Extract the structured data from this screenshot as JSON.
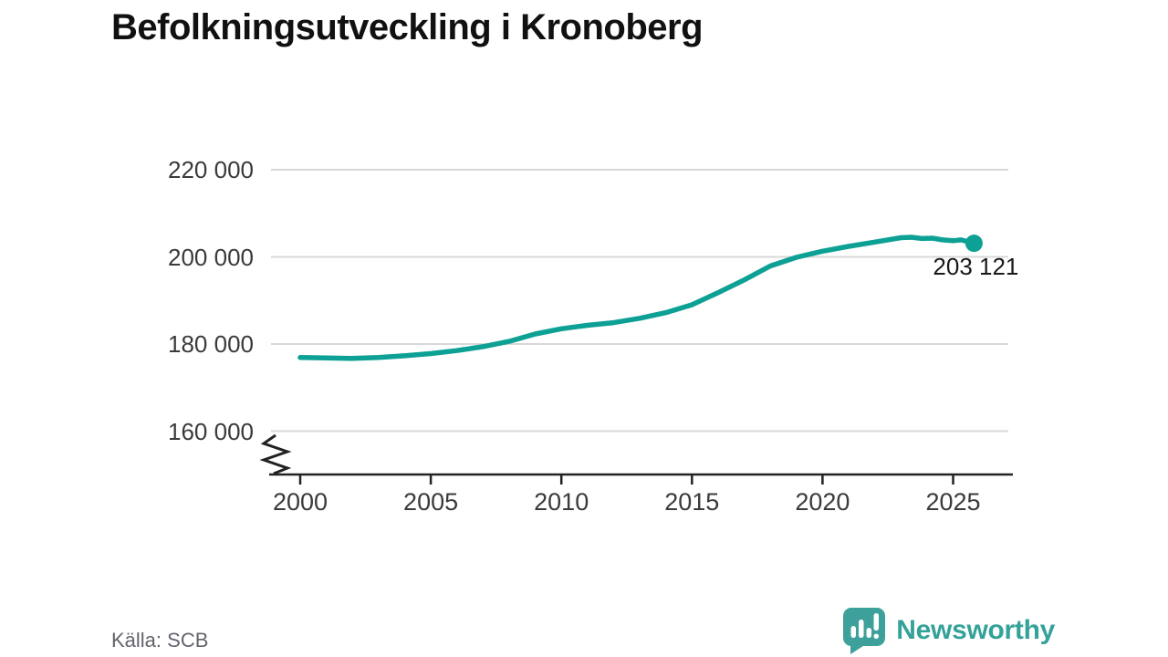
{
  "title": "Befolkningsutveckling i Kronoberg",
  "source": "Källa: SCB",
  "branding": {
    "logo_text": "Newsworthy",
    "logo_icon": "newsworthy-bar-chart-speech-bubble",
    "logo_color": "#3ea09a"
  },
  "colors": {
    "line": "#0da094",
    "grid": "#d8d8d8",
    "axis": "#222222",
    "title_text": "#111111",
    "tick_text": "#3a3a3a",
    "end_label_text": "#1a1a1a",
    "source_text": "#63636e"
  },
  "chart_data": {
    "type": "line",
    "title": "Befolkningsutveckling i Kronoberg",
    "xlabel": "",
    "ylabel": "",
    "grid": "horizontal",
    "legend_position": "none",
    "axis_break_bottom": true,
    "x_ticks": [
      2000,
      2005,
      2010,
      2015,
      2020,
      2025
    ],
    "x_tick_labels": [
      "2000",
      "2005",
      "2010",
      "2015",
      "2020",
      "2025"
    ],
    "y_ticks": [
      160000,
      180000,
      200000,
      220000
    ],
    "y_tick_labels": [
      "160 000",
      "180 000",
      "200 000",
      "220 000"
    ],
    "x_range": [
      1998.9,
      2027.0
    ],
    "y_range_displayed": [
      150000,
      227800
    ],
    "series": [
      {
        "name": "Befolkning",
        "color": "#0da094",
        "points": [
          [
            2000,
            176900
          ],
          [
            2001,
            176800
          ],
          [
            2002,
            176700
          ],
          [
            2003,
            176900
          ],
          [
            2004,
            177300
          ],
          [
            2005,
            177800
          ],
          [
            2006,
            178500
          ],
          [
            2007,
            179400
          ],
          [
            2008,
            180600
          ],
          [
            2009,
            182300
          ],
          [
            2010,
            183500
          ],
          [
            2011,
            184300
          ],
          [
            2012,
            184900
          ],
          [
            2013,
            185900
          ],
          [
            2014,
            187200
          ],
          [
            2015,
            189000
          ],
          [
            2016,
            191800
          ],
          [
            2017,
            194700
          ],
          [
            2018,
            197900
          ],
          [
            2019,
            199900
          ],
          [
            2020,
            201300
          ],
          [
            2021,
            202400
          ],
          [
            2022,
            203400
          ],
          [
            2023,
            204400
          ],
          [
            2023.4,
            204500
          ],
          [
            2023.8,
            204200
          ],
          [
            2024.2,
            204300
          ],
          [
            2024.6,
            203900
          ],
          [
            2025.0,
            203700
          ],
          [
            2025.3,
            203900
          ],
          [
            2025.8,
            203121
          ]
        ],
        "last_point": {
          "x": 2025.8,
          "value": 203121,
          "label": "203 121"
        }
      }
    ]
  }
}
